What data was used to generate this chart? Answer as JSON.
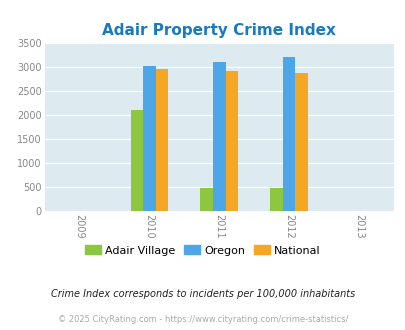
{
  "title": "Adair Property Crime Index",
  "title_color": "#1a7abf",
  "years": [
    2009,
    2010,
    2011,
    2012,
    2013
  ],
  "bar_years": [
    2010,
    2011,
    2012
  ],
  "adair_values": [
    2100,
    490,
    490
  ],
  "oregon_values": [
    3020,
    3100,
    3210
  ],
  "national_values": [
    2950,
    2920,
    2870
  ],
  "adair_color": "#8dc63f",
  "oregon_color": "#4da6e8",
  "national_color": "#f5a623",
  "ylim": [
    0,
    3500
  ],
  "yticks": [
    0,
    500,
    1000,
    1500,
    2000,
    2500,
    3000,
    3500
  ],
  "plot_bg_color": "#ddeaef",
  "fig_bg_color": "#ffffff",
  "legend_labels": [
    "Adair Village",
    "Oregon",
    "National"
  ],
  "footnote1": "Crime Index corresponds to incidents per 100,000 inhabitants",
  "footnote2": "© 2025 CityRating.com - https://www.cityrating.com/crime-statistics/",
  "footnote1_color": "#222222",
  "footnote2_color": "#aaaaaa",
  "bar_width": 0.18
}
